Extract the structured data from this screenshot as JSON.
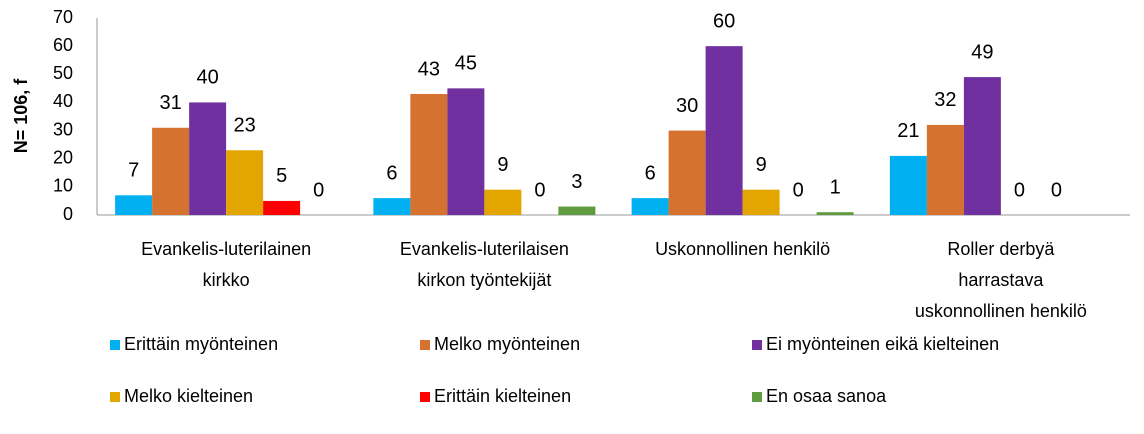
{
  "chart_data": {
    "type": "bar",
    "y_label": "N= 106, f",
    "categories": [
      [
        "Evankelis-luterilainen",
        "kirkko"
      ],
      [
        "Evankelis-luterilaisen",
        "kirkon työntekijät"
      ],
      [
        "Uskonnollinen henkilö"
      ],
      [
        "Roller derbyä",
        "harrastava",
        "uskonnollinen henkilö"
      ]
    ],
    "series": [
      {
        "name": "Erittäin myönteinen",
        "color": "#00b0f0",
        "values": [
          7,
          6,
          6,
          21
        ]
      },
      {
        "name": "Melko myönteinen",
        "color": "#d5722f",
        "values": [
          31,
          43,
          30,
          32
        ]
      },
      {
        "name": "Ei myönteinen eikä kielteinen",
        "color": "#7030a0",
        "values": [
          40,
          45,
          60,
          49
        ]
      },
      {
        "name": "Melko kielteinen",
        "color": "#e3a600",
        "values": [
          23,
          9,
          9,
          0
        ]
      },
      {
        "name": "Erittäin kielteinen",
        "color": "#ff0000",
        "values": [
          5,
          0,
          0,
          0
        ]
      },
      {
        "name": "En osaa sanoa",
        "color": "#5f9c3f",
        "values": [
          0,
          3,
          1,
          null
        ]
      }
    ],
    "ylim": [
      0,
      70
    ],
    "yticks": [
      0,
      10,
      20,
      30,
      40,
      50,
      60,
      70
    ],
    "grid": false
  }
}
